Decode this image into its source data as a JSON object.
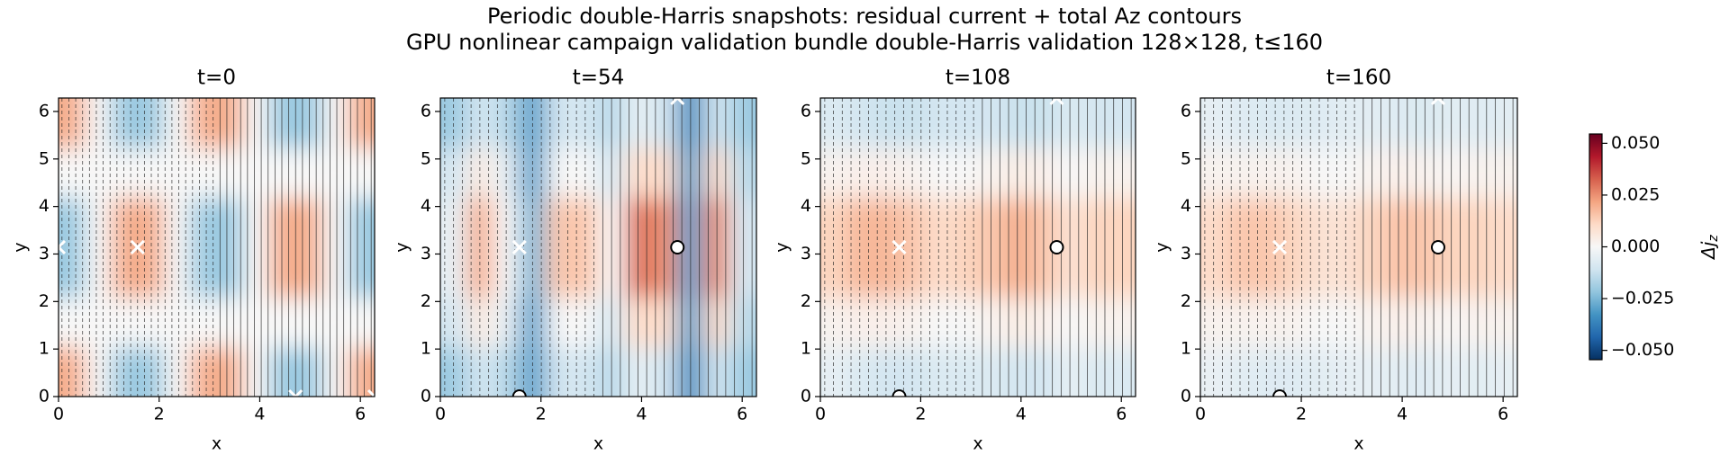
{
  "title": "Periodic double-Harris snapshots: residual current + total Az contours",
  "subtitle": "GPU nonlinear campaign validation bundle double-Harris validation 128×128, t≤160",
  "colorbar": {
    "label": {
      "main": "Δj",
      "sub": "z"
    },
    "lim": [
      -0.0545,
      0.0545
    ],
    "ticks": [
      {
        "value": 0.05,
        "label": "0.050"
      },
      {
        "value": 0.025,
        "label": "0.025"
      },
      {
        "value": 0,
        "label": "0.000"
      },
      {
        "value": -0.025,
        "label": "−0.025"
      },
      {
        "value": -0.05,
        "label": "−0.050"
      }
    ],
    "colorscale": [
      "#053061",
      "#2166ac",
      "#4393c3",
      "#92c5de",
      "#d1e5f0",
      "#f7f7f7",
      "#fddbc7",
      "#f4a582",
      "#d6604d",
      "#b2182b",
      "#67001f"
    ]
  },
  "chart_data": [
    {
      "type": "heatmap",
      "title": "t=0",
      "xlabel": "x",
      "ylabel": "y",
      "xlim": [
        0,
        6.283
      ],
      "ylim": [
        0,
        6.283
      ],
      "xticks": [
        0,
        2,
        4,
        6
      ],
      "yticks": [
        0,
        1,
        2,
        3,
        4,
        5,
        6
      ],
      "z": [
        [
          0.02,
          0,
          -0.02,
          -0.02,
          0,
          0.02,
          0.02,
          0,
          -0.02,
          -0.02,
          0,
          0.02
        ],
        [
          0,
          0,
          0,
          0,
          0,
          0,
          0,
          0,
          0,
          0,
          0,
          0
        ],
        [
          -0.02,
          0,
          0.02,
          0.02,
          0,
          -0.02,
          -0.02,
          0,
          0.02,
          0.02,
          0,
          -0.02
        ],
        [
          -0.02,
          0,
          0.02,
          0.02,
          0,
          -0.02,
          -0.02,
          0,
          0.02,
          0.02,
          0,
          -0.02
        ],
        [
          0,
          0,
          0,
          0,
          0,
          0,
          0,
          0,
          0,
          0,
          0,
          0
        ],
        [
          0.02,
          0,
          -0.02,
          -0.02,
          0,
          0.02,
          0.02,
          0,
          -0.02,
          -0.02,
          0,
          0.02
        ]
      ],
      "x_points": {
        "x": [
          0,
          1.571,
          4.712,
          6.283
        ],
        "y": [
          3.142,
          3.142,
          0,
          0
        ]
      }
    },
    {
      "type": "heatmap",
      "title": "t=54",
      "xlabel": "x",
      "ylabel": "y",
      "xlim": [
        0,
        6.283
      ],
      "ylim": [
        0,
        6.283
      ],
      "xticks": [
        0,
        2,
        4,
        6
      ],
      "yticks": [
        0,
        1,
        2,
        3,
        4,
        5,
        6
      ],
      "z": [
        [
          -0.02,
          -0.01,
          -0.015,
          -0.03,
          -0.01,
          -0.01,
          -0.015,
          -0.005,
          -0.01,
          -0.035,
          -0.01,
          -0.02
        ],
        [
          -0.01,
          0.005,
          -0.005,
          -0.03,
          0,
          0,
          -0.01,
          0.01,
          0.01,
          -0.03,
          0.01,
          -0.015
        ],
        [
          -0.005,
          0.02,
          0,
          -0.025,
          0.015,
          0.015,
          0,
          0.03,
          0.025,
          -0.03,
          0.025,
          -0.01
        ],
        [
          -0.005,
          0.02,
          0,
          -0.025,
          0.015,
          0.015,
          0,
          0.03,
          0.025,
          -0.03,
          0.025,
          -0.01
        ],
        [
          -0.01,
          0.005,
          -0.005,
          -0.03,
          0,
          0,
          -0.01,
          0.01,
          0.01,
          -0.03,
          0.01,
          -0.015
        ],
        [
          -0.02,
          -0.01,
          -0.015,
          -0.03,
          -0.01,
          -0.01,
          -0.015,
          -0.005,
          -0.01,
          -0.035,
          -0.01,
          -0.02
        ]
      ],
      "x_points": {
        "x": [
          1.571,
          4.712
        ],
        "y": [
          3.142,
          6.283
        ]
      },
      "o_points": {
        "x": [
          4.712,
          1.571
        ],
        "y": [
          3.142,
          0
        ]
      }
    },
    {
      "type": "heatmap",
      "title": "t=108",
      "xlabel": "x",
      "ylabel": "y",
      "xlim": [
        0,
        6.283
      ],
      "ylim": [
        0,
        6.283
      ],
      "xticks": [
        0,
        2,
        4,
        6
      ],
      "yticks": [
        0,
        1,
        2,
        3,
        4,
        5,
        6
      ],
      "z": [
        [
          -0.005,
          -0.008,
          -0.01,
          -0.01,
          -0.008,
          -0.008,
          -0.008,
          -0.01,
          -0.01,
          -0.005,
          -0.008,
          -0.008
        ],
        [
          0.002,
          0.003,
          0.003,
          0.002,
          0,
          0,
          0.002,
          0.004,
          0.003,
          0,
          0.002,
          0.002
        ],
        [
          0.012,
          0.018,
          0.018,
          0.015,
          0.01,
          0.012,
          0.015,
          0.02,
          0.015,
          0.008,
          0.012,
          0.012
        ],
        [
          0.012,
          0.018,
          0.018,
          0.015,
          0.01,
          0.012,
          0.015,
          0.02,
          0.015,
          0.008,
          0.012,
          0.012
        ],
        [
          0.002,
          0.003,
          0.003,
          0.002,
          0,
          0,
          0.002,
          0.004,
          0.003,
          0,
          0.002,
          0.002
        ],
        [
          -0.008,
          -0.01,
          -0.012,
          -0.012,
          -0.01,
          -0.01,
          -0.01,
          -0.012,
          -0.012,
          -0.008,
          -0.01,
          -0.01
        ]
      ],
      "x_points": {
        "x": [
          1.571,
          4.712
        ],
        "y": [
          3.142,
          6.283
        ]
      },
      "o_points": {
        "x": [
          4.712,
          1.571
        ],
        "y": [
          3.142,
          0
        ]
      }
    },
    {
      "type": "heatmap",
      "title": "t=160",
      "xlabel": "x",
      "ylabel": "y",
      "xlim": [
        0,
        6.283
      ],
      "ylim": [
        0,
        6.283
      ],
      "xticks": [
        0,
        2,
        4,
        6
      ],
      "yticks": [
        0,
        1,
        2,
        3,
        4,
        5,
        6
      ],
      "z": [
        [
          -0.004,
          -0.006,
          -0.007,
          -0.007,
          -0.006,
          -0.005,
          -0.005,
          -0.006,
          -0.007,
          -0.005,
          -0.006,
          -0.005
        ],
        [
          0.002,
          0.002,
          0.002,
          0.002,
          0,
          0,
          0.002,
          0.003,
          0.002,
          0.001,
          0.002,
          0.002
        ],
        [
          0.01,
          0.015,
          0.015,
          0.012,
          0.008,
          0.008,
          0.012,
          0.016,
          0.015,
          0.012,
          0.012,
          0.01
        ],
        [
          0.01,
          0.015,
          0.015,
          0.012,
          0.008,
          0.008,
          0.012,
          0.016,
          0.015,
          0.012,
          0.012,
          0.01
        ],
        [
          0.002,
          0.002,
          0.002,
          0.002,
          0,
          0,
          0.002,
          0.003,
          0.002,
          0.001,
          0.002,
          0.002
        ],
        [
          -0.005,
          -0.007,
          -0.008,
          -0.008,
          -0.007,
          -0.006,
          -0.006,
          -0.007,
          -0.008,
          -0.006,
          -0.007,
          -0.006
        ]
      ],
      "x_points": {
        "x": [
          1.571,
          4.712
        ],
        "y": [
          3.142,
          6.283
        ]
      },
      "o_points": {
        "x": [
          4.712,
          1.571
        ],
        "y": [
          3.142,
          0
        ]
      }
    }
  ]
}
